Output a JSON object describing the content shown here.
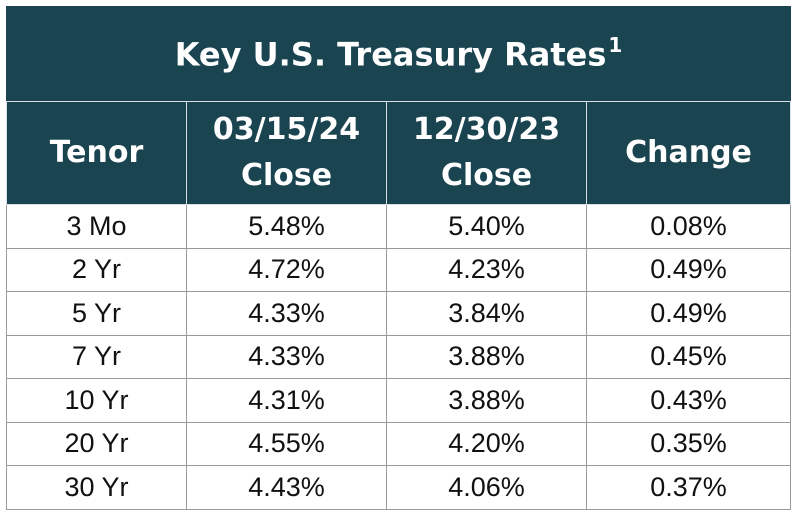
{
  "table": {
    "title": "Key U.S. Treasury Rates",
    "title_footnote": "1",
    "headers": [
      [
        "Tenor"
      ],
      [
        "03/15/24",
        "Close"
      ],
      [
        "12/30/23",
        "Close"
      ],
      [
        "Change"
      ]
    ],
    "rows": [
      [
        "3 Mo",
        "5.48%",
        "5.40%",
        "0.08%"
      ],
      [
        "2 Yr",
        "4.72%",
        "4.23%",
        "0.49%"
      ],
      [
        "5 Yr",
        "4.33%",
        "3.84%",
        "0.49%"
      ],
      [
        "7 Yr",
        "4.33%",
        "3.88%",
        "0.45%"
      ],
      [
        "10 Yr",
        "4.31%",
        "3.88%",
        "0.43%"
      ],
      [
        "20 Yr",
        "4.55%",
        "4.20%",
        "0.35%"
      ],
      [
        "30 Yr",
        "4.43%",
        "4.06%",
        "0.37%"
      ]
    ],
    "colors": {
      "header_bg": "#1b4451",
      "header_text": "#ffffff",
      "cell_text": "#111111"
    }
  }
}
